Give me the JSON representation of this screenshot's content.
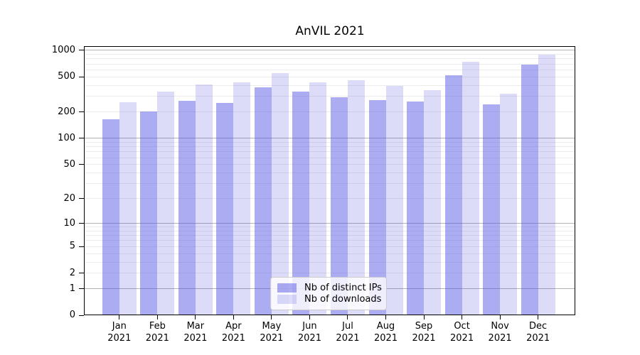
{
  "title": "AnVIL 2021",
  "chart_data": {
    "type": "bar",
    "title": "AnVIL 2021",
    "categories": [
      "Jan 2021",
      "Feb 2021",
      "Mar 2021",
      "Apr 2021",
      "May 2021",
      "Jun 2021",
      "Jul 2021",
      "Aug 2021",
      "Sep 2021",
      "Oct 2021",
      "Nov 2021",
      "Dec 2021"
    ],
    "series": [
      {
        "name": "Nb of distinct IPs",
        "color": "rgba(82,82,227,0.48)",
        "values": [
          164,
          203,
          268,
          252,
          384,
          340,
          291,
          272,
          264,
          522,
          242,
          692
        ]
      },
      {
        "name": "Nb of downloads",
        "color": "rgba(82,82,227,0.20)",
        "values": [
          260,
          338,
          408,
          436,
          549,
          436,
          456,
          397,
          351,
          746,
          324,
          888
        ]
      }
    ],
    "xlabel": "",
    "ylabel": "",
    "yscale": "symlog ln(1+y)",
    "yticks": [
      0,
      1,
      2,
      5,
      10,
      20,
      50,
      100,
      200,
      500,
      1000
    ],
    "ylim": [
      0,
      1117
    ],
    "grid": {
      "horizontal": true,
      "major_gridline_color": "#b2b2b2",
      "minor_gridline_color": "#ececec"
    },
    "legend": {
      "position": "bottom-center",
      "entries": [
        "Nb of distinct IPs",
        "Nb of downloads"
      ]
    }
  },
  "colors": {
    "background": "#ffffff",
    "spine": "#000000",
    "text": "#000000",
    "bar_dark": "rgba(82,82,227,0.48)",
    "bar_light": "rgba(82,82,227,0.20)"
  }
}
